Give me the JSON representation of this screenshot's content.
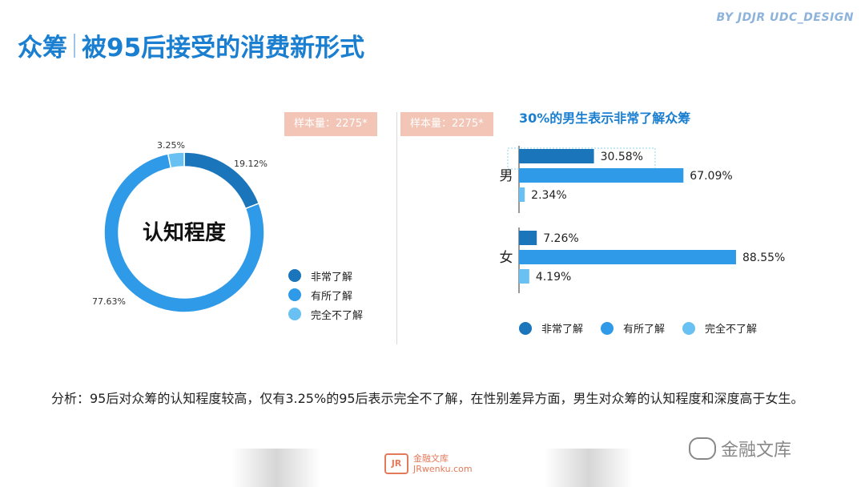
{
  "brand": "BY JDJR UDC_DESIGN",
  "title": {
    "part1": "众筹",
    "part2": "被95后接受的消费新形式"
  },
  "sample_left": "样本量：2275*",
  "sample_right": "样本量：2275*",
  "colors": {
    "very": "#1b75bb",
    "some": "#2f9ae8",
    "none": "#69c0f2",
    "accent": "#1a7fd0",
    "pill": "#f2c5b6"
  },
  "chart_data": [
    {
      "type": "pie",
      "title": "",
      "center_label": "认知程度",
      "categories": [
        "非常了解",
        "有所了解",
        "完全不了解"
      ],
      "values": [
        19.12,
        77.63,
        3.25
      ],
      "value_labels": [
        "19.12%",
        "77.63%",
        "3.25%"
      ],
      "legend": [
        "非常了解",
        "有所了解",
        "完全不了解"
      ],
      "legend_position": "right"
    },
    {
      "type": "bar",
      "orientation": "horizontal",
      "title": "30%的男生表示非常了解众筹",
      "categories": [
        "男",
        "女"
      ],
      "series": [
        {
          "name": "非常了解",
          "values": [
            30.58,
            7.26
          ],
          "labels": [
            "30.58%",
            "7.26%"
          ]
        },
        {
          "name": "有所了解",
          "values": [
            67.09,
            88.55
          ],
          "labels": [
            "67.09%",
            "88.55%"
          ]
        },
        {
          "name": "完全不了解",
          "values": [
            2.34,
            4.19
          ],
          "labels": [
            "2.34%",
            "4.19%"
          ]
        }
      ],
      "xlim": [
        0,
        100
      ],
      "legend_position": "bottom"
    }
  ],
  "analysis": "分析：95后对众筹的认知程度较高，仅有3.25%的95后表示完全不了解，在性别差异方面，男生对众筹的认知程度和深度高于女生。",
  "watermark": "金融文库",
  "jr_logo": {
    "mark": "JR",
    "name": "金融文库",
    "url": "JRwenku.com"
  }
}
